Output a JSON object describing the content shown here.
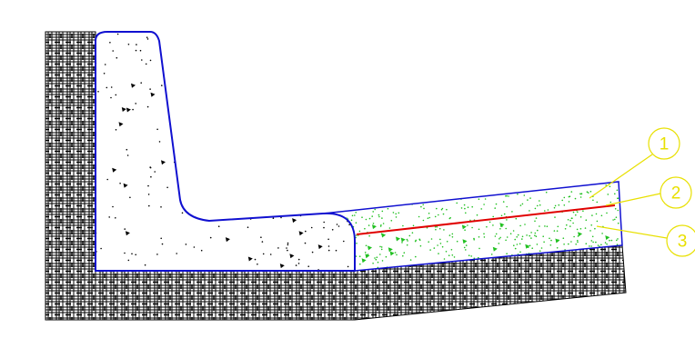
{
  "callouts": [
    {
      "label": "1"
    },
    {
      "label": "2"
    },
    {
      "label": "3"
    }
  ]
}
